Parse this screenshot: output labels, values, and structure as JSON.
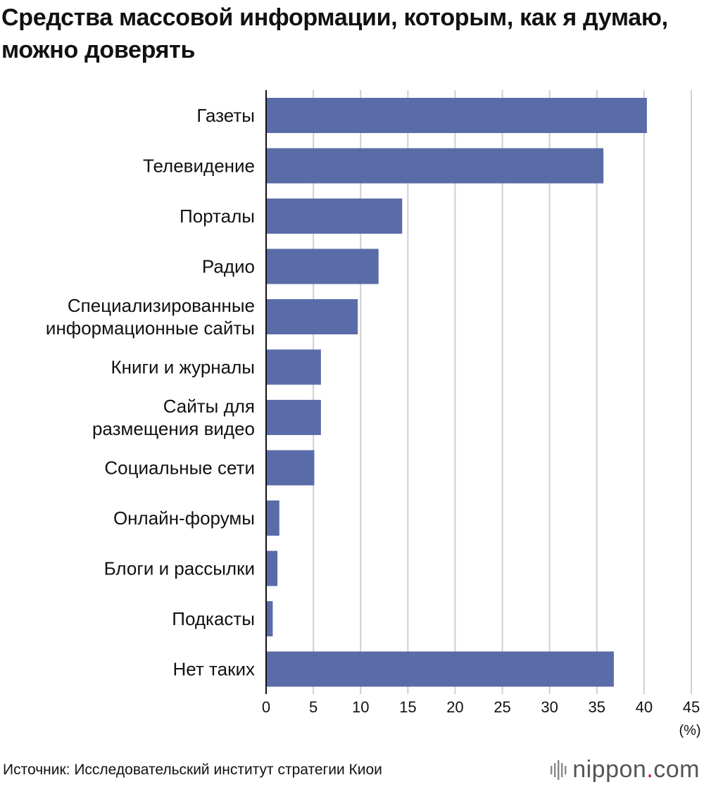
{
  "chart_data": {
    "type": "bar",
    "orientation": "horizontal",
    "title": "Средства массовой информации, которым, как я думаю, можно доверять",
    "categories": [
      [
        "Газеты"
      ],
      [
        "Телевидение"
      ],
      [
        "Порталы"
      ],
      [
        "Радио"
      ],
      [
        "Специализированные",
        "информационные сайты"
      ],
      [
        "Книги и журналы"
      ],
      [
        "Сайты для",
        "размещения видео"
      ],
      [
        "Социальные сети"
      ],
      [
        "Онлайн-форумы"
      ],
      [
        "Блоги и рассылки"
      ],
      [
        "Подкасты"
      ],
      [
        "Нет таких"
      ]
    ],
    "values": [
      40.3,
      35.7,
      14.4,
      11.9,
      9.7,
      5.8,
      5.8,
      5.1,
      1.4,
      1.2,
      0.7,
      36.8
    ],
    "xlim": [
      0,
      45
    ],
    "xticks": [
      0,
      5,
      10,
      15,
      20,
      25,
      30,
      35,
      40,
      45
    ],
    "unit": "(%)",
    "grid": true,
    "bar_color": "#5a6ca8",
    "grid_color": "#cfcfcf"
  },
  "footer": {
    "source": "Источник: Исследовательский институт стратегии Киои",
    "brand_name": "nippon",
    "brand_dot": ".",
    "brand_tld": "com"
  }
}
